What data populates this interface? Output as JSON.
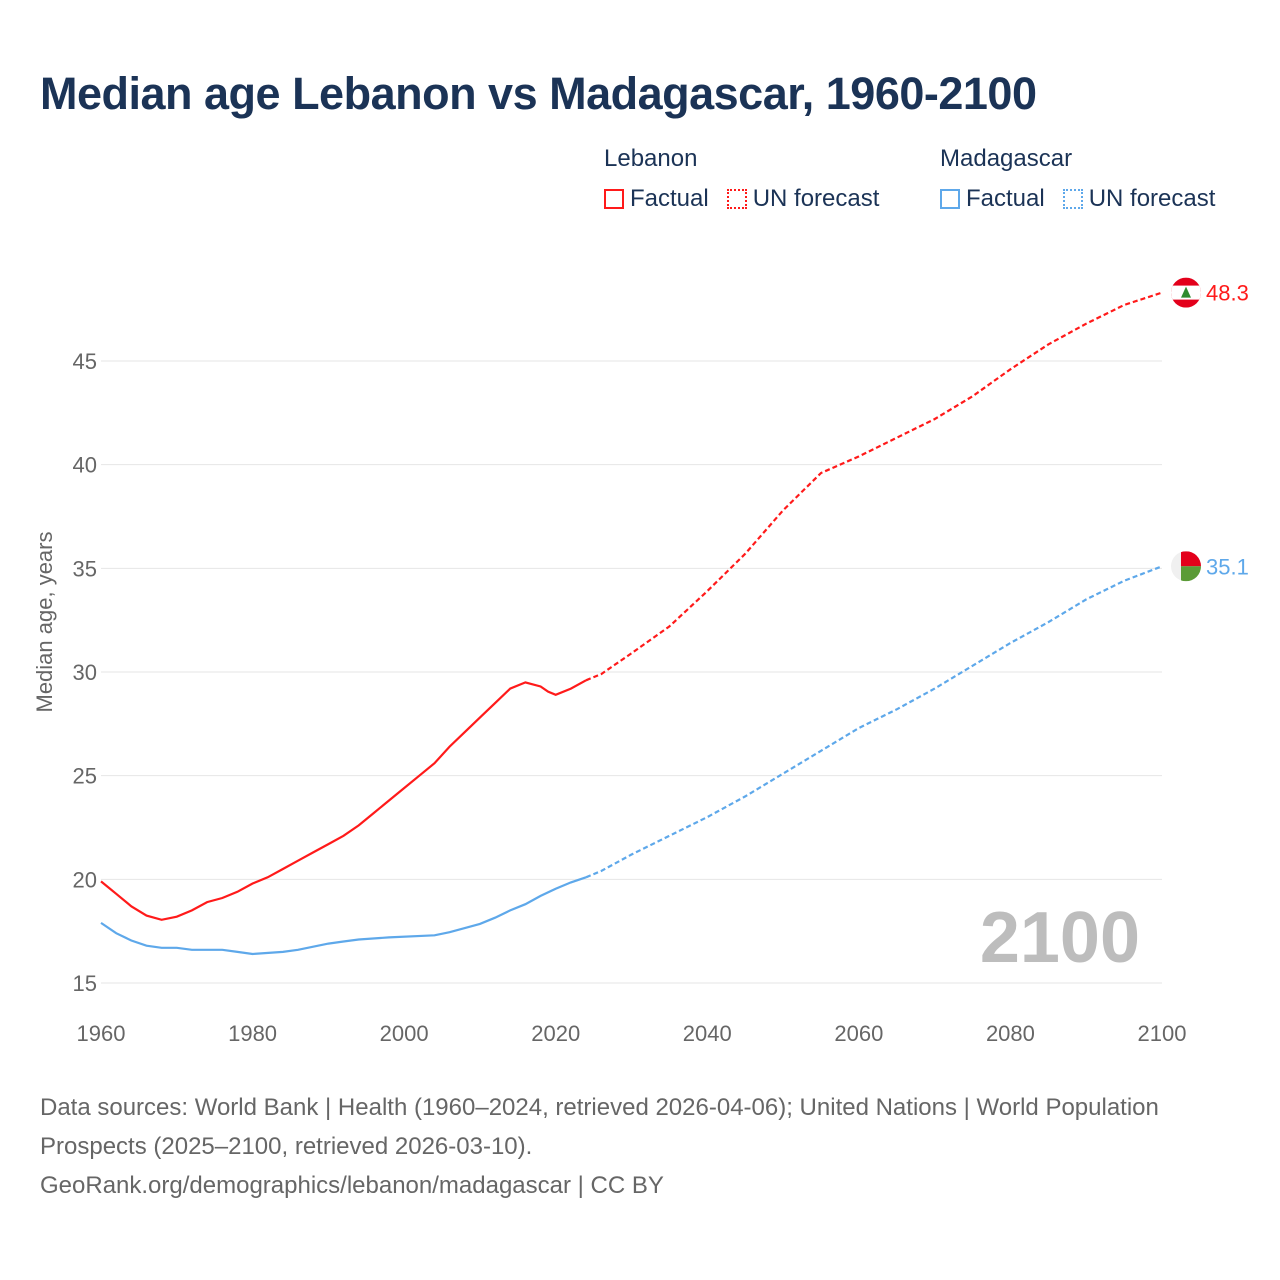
{
  "title": "Median age Lebanon vs Madagascar, 1960-2100",
  "legend": {
    "groups": [
      {
        "name": "Lebanon",
        "factual": "Factual",
        "forecast": "UN forecast",
        "color": "#ff1a1a"
      },
      {
        "name": "Madagascar",
        "factual": "Factual",
        "forecast": "UN forecast",
        "color": "#5ea8ea"
      }
    ]
  },
  "year_watermark": "2100",
  "footer": {
    "sources": "Data sources: World Bank | Health (1960–2024, retrieved 2026-04-06); United Nations | World Population Prospects (2025–2100, retrieved 2026-03-10).",
    "attribution": "GeoRank.org/demographics/lebanon/madagascar | CC BY"
  },
  "chart_data": {
    "type": "line",
    "title": "Median age Lebanon vs Madagascar, 1960-2100",
    "xlabel": "",
    "ylabel": "Median age, years",
    "xlim": [
      1960,
      2100
    ],
    "ylim": [
      15,
      48.5
    ],
    "xticks": [
      "1960",
      "1980",
      "2000",
      "2020",
      "2040",
      "2060",
      "2080",
      "2100"
    ],
    "yticks": [
      "15",
      "20",
      "25",
      "30",
      "35",
      "40",
      "45"
    ],
    "grid": true,
    "legend_position": "top-right",
    "series": [
      {
        "name": "Lebanon",
        "color": "#ff1a1a",
        "end_label": "48.3",
        "factual": [
          [
            1960,
            19.9
          ],
          [
            1962,
            19.3
          ],
          [
            1964,
            18.7
          ],
          [
            1966,
            18.25
          ],
          [
            1968,
            18.05
          ],
          [
            1970,
            18.2
          ],
          [
            1972,
            18.5
          ],
          [
            1974,
            18.9
          ],
          [
            1976,
            19.1
          ],
          [
            1978,
            19.4
          ],
          [
            1980,
            19.8
          ],
          [
            1982,
            20.1
          ],
          [
            1984,
            20.5
          ],
          [
            1986,
            20.9
          ],
          [
            1988,
            21.3
          ],
          [
            1990,
            21.7
          ],
          [
            1992,
            22.1
          ],
          [
            1994,
            22.6
          ],
          [
            1996,
            23.2
          ],
          [
            1998,
            23.8
          ],
          [
            2000,
            24.4
          ],
          [
            2002,
            25.0
          ],
          [
            2004,
            25.6
          ],
          [
            2006,
            26.4
          ],
          [
            2008,
            27.1
          ],
          [
            2010,
            27.8
          ],
          [
            2012,
            28.5
          ],
          [
            2014,
            29.2
          ],
          [
            2016,
            29.5
          ],
          [
            2018,
            29.3
          ],
          [
            2019,
            29.05
          ],
          [
            2020,
            28.9
          ],
          [
            2022,
            29.2
          ],
          [
            2024,
            29.6
          ]
        ],
        "forecast": [
          [
            2024,
            29.6
          ],
          [
            2026,
            29.9
          ],
          [
            2030,
            30.9
          ],
          [
            2035,
            32.2
          ],
          [
            2040,
            33.9
          ],
          [
            2045,
            35.7
          ],
          [
            2050,
            37.8
          ],
          [
            2055,
            39.6
          ],
          [
            2060,
            40.4
          ],
          [
            2065,
            41.3
          ],
          [
            2070,
            42.2
          ],
          [
            2075,
            43.3
          ],
          [
            2080,
            44.6
          ],
          [
            2085,
            45.8
          ],
          [
            2090,
            46.8
          ],
          [
            2095,
            47.7
          ],
          [
            2100,
            48.3
          ]
        ]
      },
      {
        "name": "Madagascar",
        "color": "#5ea8ea",
        "end_label": "35.1",
        "factual": [
          [
            1960,
            17.9
          ],
          [
            1962,
            17.4
          ],
          [
            1964,
            17.05
          ],
          [
            1966,
            16.8
          ],
          [
            1968,
            16.7
          ],
          [
            1970,
            16.7
          ],
          [
            1972,
            16.6
          ],
          [
            1976,
            16.6
          ],
          [
            1978,
            16.5
          ],
          [
            1980,
            16.4
          ],
          [
            1984,
            16.5
          ],
          [
            1986,
            16.6
          ],
          [
            1988,
            16.75
          ],
          [
            1990,
            16.9
          ],
          [
            1992,
            17.0
          ],
          [
            1994,
            17.1
          ],
          [
            1998,
            17.2
          ],
          [
            2004,
            17.3
          ],
          [
            2006,
            17.45
          ],
          [
            2008,
            17.65
          ],
          [
            2010,
            17.85
          ],
          [
            2012,
            18.15
          ],
          [
            2014,
            18.5
          ],
          [
            2016,
            18.8
          ],
          [
            2018,
            19.2
          ],
          [
            2020,
            19.55
          ],
          [
            2022,
            19.85
          ],
          [
            2024,
            20.1
          ]
        ],
        "forecast": [
          [
            2024,
            20.1
          ],
          [
            2026,
            20.4
          ],
          [
            2030,
            21.2
          ],
          [
            2035,
            22.1
          ],
          [
            2040,
            23.0
          ],
          [
            2045,
            24.0
          ],
          [
            2050,
            25.1
          ],
          [
            2055,
            26.2
          ],
          [
            2060,
            27.3
          ],
          [
            2065,
            28.2
          ],
          [
            2070,
            29.2
          ],
          [
            2075,
            30.3
          ],
          [
            2080,
            31.4
          ],
          [
            2085,
            32.4
          ],
          [
            2090,
            33.5
          ],
          [
            2095,
            34.4
          ],
          [
            2100,
            35.1
          ]
        ]
      }
    ]
  }
}
